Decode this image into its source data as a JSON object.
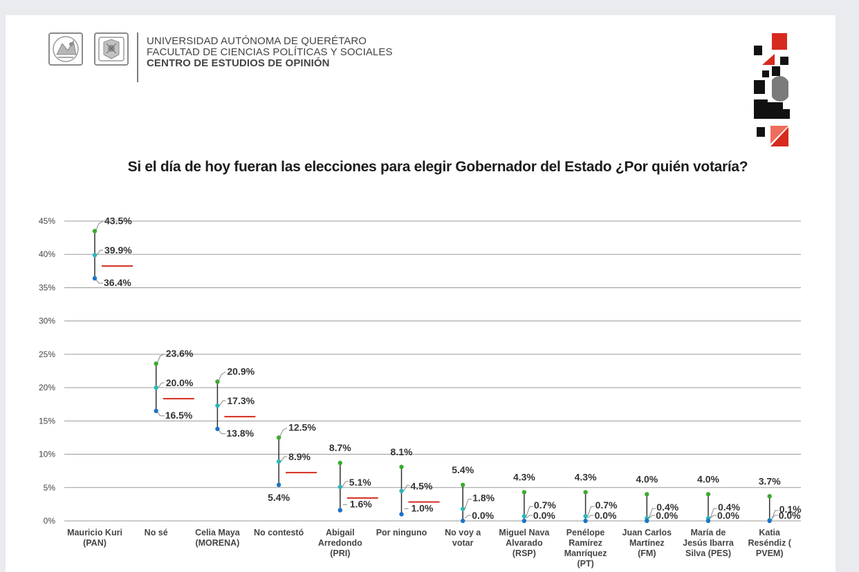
{
  "header": {
    "line1": "UNIVERSIDAD AUTÓNOMA DE QUERÉTARO",
    "line2": "FACULTAD DE CIENCIAS POLÍTICAS Y SOCIALES",
    "line3": "CENTRO DE ESTUDIOS DE OPINIÓN"
  },
  "colors": {
    "upper": "#3cab2f",
    "mid": "#2ab7b9",
    "lower": "#1a73c8",
    "line": "#2f2f2f",
    "underline": "#d62a1e",
    "grid": "#9a9a9a",
    "text": "#333333"
  },
  "chart_data": {
    "type": "range",
    "title": "Si el día de hoy fueran las elecciones para elegir Gobernador del Estado ¿Por quién votaría?",
    "xlabel": "",
    "ylabel": "",
    "ylim": [
      0,
      45
    ],
    "yticks": [
      0,
      5,
      10,
      15,
      20,
      25,
      30,
      35,
      40,
      45
    ],
    "ytick_labels": [
      "0%",
      "5%",
      "10%",
      "15%",
      "20%",
      "25%",
      "30%",
      "35%",
      "40%",
      "45%"
    ],
    "grid": true,
    "categories": [
      {
        "label": [
          "Mauricio Kuri",
          "(PAN)"
        ],
        "high": 43.5,
        "mid": 39.9,
        "low": 36.4,
        "high_label": "43.5%",
        "mid_label": "39.9%",
        "low_label": "36.4%",
        "underline": true
      },
      {
        "label": [
          "No sé"
        ],
        "high": 23.6,
        "mid": 20.0,
        "low": 16.5,
        "high_label": "23.6%",
        "mid_label": "20.0%",
        "low_label": "16.5%",
        "underline": true
      },
      {
        "label": [
          "Celia Maya",
          "(MORENA)"
        ],
        "high": 20.9,
        "mid": 17.3,
        "low": 13.8,
        "high_label": "20.9%",
        "mid_label": "17.3%",
        "low_label": "13.8%",
        "underline": true
      },
      {
        "label": [
          "No contestó"
        ],
        "high": 12.5,
        "mid": 8.9,
        "low": 5.4,
        "high_label": "12.5%",
        "mid_label": "8.9%",
        "low_label": "5.4%",
        "underline": true
      },
      {
        "label": [
          "Abigail",
          "Arredondo",
          "(PRI)"
        ],
        "high": 8.7,
        "mid": 5.1,
        "low": 1.6,
        "high_label": "8.7%",
        "mid_label": "5.1%",
        "low_label": "1.6%",
        "underline": true
      },
      {
        "label": [
          "Por ninguno"
        ],
        "high": 8.1,
        "mid": 4.5,
        "low": 1.0,
        "high_label": "8.1%",
        "mid_label": "4.5%",
        "low_label": "1.0%",
        "underline": true
      },
      {
        "label": [
          "No voy a",
          "votar"
        ],
        "high": 5.4,
        "mid": 1.8,
        "low": 0.0,
        "high_label": "5.4%",
        "mid_label": "1.8%",
        "low_label": "0.0%",
        "underline": false
      },
      {
        "label": [
          "Miguel Nava",
          "Alvarado",
          "(RSP)"
        ],
        "high": 4.3,
        "mid": 0.7,
        "low": 0.0,
        "high_label": "4.3%",
        "mid_label": "0.7%",
        "low_label": "0.0%",
        "underline": false
      },
      {
        "label": [
          "Penélope",
          "Ramírez",
          "Manríquez",
          "(PT)"
        ],
        "high": 4.3,
        "mid": 0.7,
        "low": 0.0,
        "high_label": "4.3%",
        "mid_label": "0.7%",
        "low_label": "0.0%",
        "underline": false
      },
      {
        "label": [
          "Juan Carlos",
          "Martínez",
          "(FM)"
        ],
        "high": 4.0,
        "mid": 0.4,
        "low": 0.0,
        "high_label": "4.0%",
        "mid_label": "0.4%",
        "low_label": "0.0%",
        "underline": false
      },
      {
        "label": [
          "María de",
          "Jesús Ibarra",
          "Silva (PES)"
        ],
        "high": 4.0,
        "mid": 0.4,
        "low": 0.0,
        "high_label": "4.0%",
        "mid_label": "0.4%",
        "low_label": "0.0%",
        "underline": false
      },
      {
        "label": [
          "Katia",
          "Reséndiz (",
          "PVEM)"
        ],
        "high": 3.7,
        "mid": 0.1,
        "low": 0.0,
        "high_label": "3.7%",
        "mid_label": "0.1%",
        "low_label": "0.0%",
        "underline": false
      }
    ]
  }
}
